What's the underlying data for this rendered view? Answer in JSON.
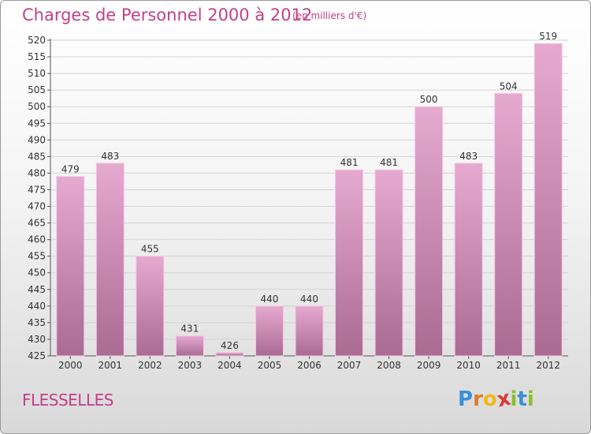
{
  "title": "Charges de Personnel 2000 à 2012",
  "subtitle": "(en milliers d'€)",
  "commune": "FLESSELLES",
  "logo": {
    "text": "Proxiti",
    "letters": [
      {
        "ch": "P",
        "color": "#3a8fd6"
      },
      {
        "ch": "r",
        "color": "#e07a2b"
      },
      {
        "ch": "o",
        "color": "#f2b81b"
      },
      {
        "ch": "x",
        "color": "#d93a3a"
      },
      {
        "ch": "i",
        "color": "#8bbf2a"
      },
      {
        "ch": "t",
        "color": "#3a8fd6"
      },
      {
        "ch": "i",
        "color": "#8bbf2a"
      }
    ]
  },
  "colors": {
    "accent": "#c2408a",
    "bar_top": "#e6a9d0",
    "bar_bottom": "#aa6b93"
  },
  "chart_data": {
    "type": "bar",
    "title": "Charges de Personnel 2000 à 2012",
    "subtitle": "(en milliers d'€)",
    "xlabel": "",
    "ylabel": "",
    "categories": [
      "2000",
      "2001",
      "2002",
      "2003",
      "2004",
      "2005",
      "2006",
      "2007",
      "2008",
      "2009",
      "2010",
      "2011",
      "2012"
    ],
    "values": [
      479,
      483,
      455,
      431,
      426,
      440,
      440,
      481,
      481,
      500,
      483,
      504,
      519
    ],
    "ylim": [
      425,
      520
    ],
    "yticks": [
      425,
      430,
      435,
      440,
      445,
      450,
      455,
      460,
      465,
      470,
      475,
      480,
      485,
      490,
      495,
      500,
      505,
      510,
      515,
      520
    ],
    "grid": true,
    "legend": "none"
  }
}
